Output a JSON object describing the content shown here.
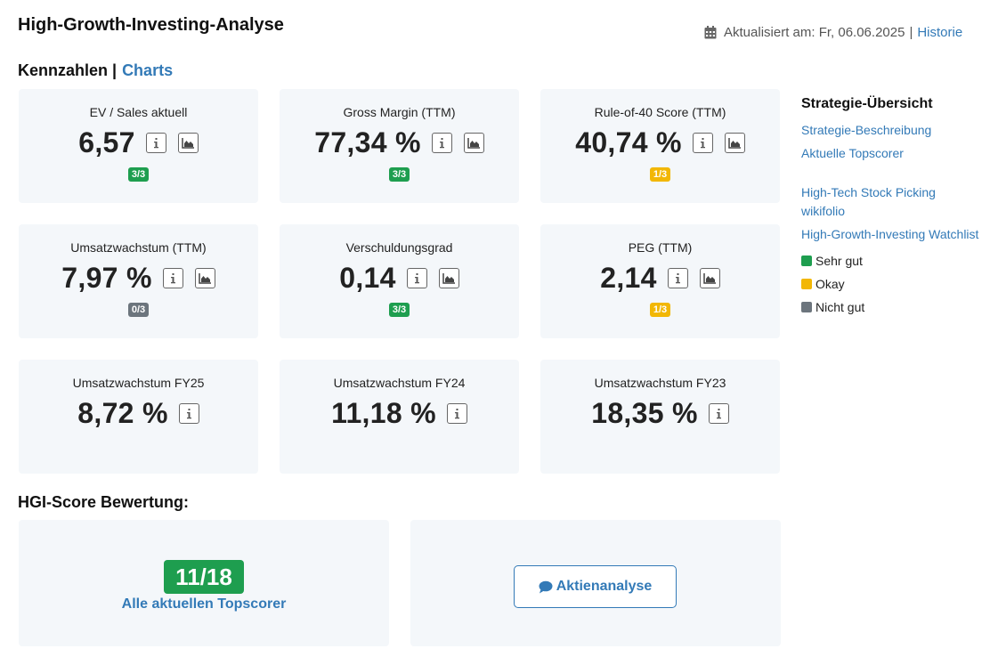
{
  "header": {
    "title": "High-Growth-Investing-Analyse",
    "updated_text": "Aktualisiert am: Fr, 06.06.2025",
    "separator": "|",
    "history_link": "Historie"
  },
  "tabs": {
    "active": "Kennzahlen",
    "separator": "|",
    "charts": "Charts"
  },
  "metrics": [
    {
      "label": "EV / Sales aktuell",
      "value": "6,57",
      "badge": "3/3",
      "badge_color": "#1e9e4f",
      "has_chart": true
    },
    {
      "label": "Gross Margin (TTM)",
      "value": "77,34 %",
      "badge": "3/3",
      "badge_color": "#1e9e4f",
      "has_chart": true
    },
    {
      "label": "Rule-of-40 Score (TTM)",
      "value": "40,74 %",
      "badge": "1/3",
      "badge_color": "#f2b705",
      "has_chart": true
    },
    {
      "label": "Umsatzwachstum (TTM)",
      "value": "7,97 %",
      "badge": "0/3",
      "badge_color": "#6c757d",
      "has_chart": true
    },
    {
      "label": "Verschuldungsgrad",
      "value": "0,14",
      "badge": "3/3",
      "badge_color": "#1e9e4f",
      "has_chart": true
    },
    {
      "label": "PEG (TTM)",
      "value": "2,14",
      "badge": "1/3",
      "badge_color": "#f2b705",
      "has_chart": true
    },
    {
      "label": "Umsatzwachstum FY25",
      "value": "8,72 %",
      "badge": null,
      "has_chart": false
    },
    {
      "label": "Umsatzwachstum FY24",
      "value": "11,18 %",
      "badge": null,
      "has_chart": false
    },
    {
      "label": "Umsatzwachstum FY23",
      "value": "18,35 %",
      "badge": null,
      "has_chart": false
    }
  ],
  "sidebar": {
    "heading": "Strategie-Übersicht",
    "links": [
      "Strategie-Beschreibung",
      "Aktuelle Topscorer"
    ],
    "links2": [
      "High-Tech Stock Picking wikifolio",
      "High-Growth-Investing Watchlist"
    ],
    "legend": [
      {
        "label": "Sehr gut",
        "color": "#1e9e4f"
      },
      {
        "label": "Okay",
        "color": "#f2b705"
      },
      {
        "label": "Nicht gut",
        "color": "#6c757d"
      }
    ]
  },
  "score": {
    "heading": "HGI-Score Bewertung:",
    "value": "11/18",
    "link": "Alle aktuellen Topscorer",
    "analysis_button": "Aktienanalyse"
  },
  "icons": {
    "info": "info-icon",
    "chart": "area-chart-icon",
    "calendar": "calendar-icon",
    "comment": "comment-icon"
  },
  "colors": {
    "link": "#337ab7",
    "card_bg": "#f4f7fa",
    "good": "#1e9e4f",
    "okay": "#f2b705",
    "bad": "#6c757d"
  }
}
